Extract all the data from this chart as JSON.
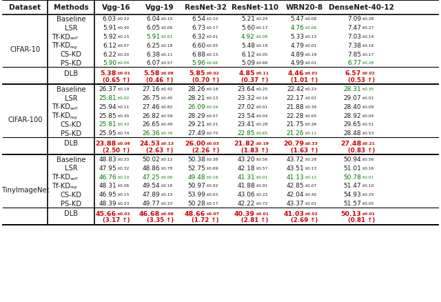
{
  "col_headers": [
    "Dataset",
    "Methods",
    "Vgg-16",
    "Vgg-19",
    "ResNet-32",
    "ResNet-110",
    "WRN20-8",
    "DenseNet-40-12"
  ],
  "cifar10": {
    "Baseline": [
      [
        "6.03",
        "0.22"
      ],
      [
        "6.04",
        "0.10"
      ],
      [
        "6.54",
        "0.10"
      ],
      [
        "5.21",
        "0.24"
      ],
      [
        "5.47",
        "0.08"
      ],
      [
        "7.09",
        "0.28"
      ]
    ],
    "LSR": [
      [
        "5.91",
        "0.40"
      ],
      [
        "6.05",
        "0.06"
      ],
      [
        "6.73",
        "0.17"
      ],
      [
        "5.60",
        "0.17"
      ],
      [
        "4.76",
        "0.06"
      ],
      [
        "7.47",
        "0.27"
      ]
    ],
    "Tf-KDself": [
      [
        "5.92",
        "0.15"
      ],
      [
        "5.91",
        "0.01"
      ],
      [
        "6.32",
        "0.01"
      ],
      [
        "4.92",
        "0.08"
      ],
      [
        "5.33",
        "0.13"
      ],
      [
        "7.03",
        "0.14"
      ]
    ],
    "Tf-KDreg": [
      [
        "6.12",
        "0.07"
      ],
      [
        "6.25",
        "0.18"
      ],
      [
        "6.60",
        "0.05"
      ],
      [
        "5.48",
        "0.18"
      ],
      [
        "4.79",
        "0.01"
      ],
      [
        "7.38",
        "0.16"
      ]
    ],
    "CS-KD": [
      [
        "6.22",
        "0.20"
      ],
      [
        "6.38",
        "0.11"
      ],
      [
        "6.88",
        "0.15"
      ],
      [
        "6.12",
        "0.05"
      ],
      [
        "4.89",
        "0.19"
      ],
      [
        "7.85",
        "0.17"
      ]
    ],
    "PS-KD": [
      [
        "5.90",
        "0.04"
      ],
      [
        "6.07",
        "0.57"
      ],
      [
        "5.96",
        "0.06"
      ],
      [
        "5.09",
        "0.68"
      ],
      [
        "4.99",
        "0.01"
      ],
      [
        "6.77",
        "0.28"
      ]
    ],
    "DLB": [
      [
        "5.38",
        "0.01"
      ],
      [
        "5.58",
        "0.08"
      ],
      [
        "5.85",
        "0.02"
      ],
      [
        "4.85",
        "0.11"
      ],
      [
        "4.46",
        "0.01"
      ],
      [
        "6.57",
        "0.02"
      ]
    ],
    "DLB_imp": [
      "0.65",
      "0.46",
      "0.70",
      "0.37",
      "1.01",
      "0.53"
    ]
  },
  "cifar100": {
    "Baseline": [
      [
        "26.37",
        "0.19"
      ],
      [
        "27.16",
        "0.42"
      ],
      [
        "28.26",
        "0.18"
      ],
      [
        "23.64",
        "0.25"
      ],
      [
        "22.42",
        "0.23"
      ],
      [
        "28.31",
        "0.35"
      ]
    ],
    "LSR": [
      [
        "25.81",
        "0.02"
      ],
      [
        "26.75",
        "0.45"
      ],
      [
        "28.21",
        "0.13"
      ],
      [
        "23.32",
        "0.16"
      ],
      [
        "22.17",
        "0.01"
      ],
      [
        "29.07",
        "0.01"
      ]
    ],
    "Tf-KDself": [
      [
        "25.94",
        "0.11"
      ],
      [
        "27.46",
        "0.82"
      ],
      [
        "26.09",
        "0.24"
      ],
      [
        "27.02",
        "0.01"
      ],
      [
        "21.88",
        "0.34"
      ],
      [
        "28.40",
        "0.09"
      ]
    ],
    "Tf-KDreg": [
      [
        "25.85",
        "0.30"
      ],
      [
        "26.82",
        "0.59"
      ],
      [
        "28.29",
        "0.07"
      ],
      [
        "23.54",
        "0.04"
      ],
      [
        "22.28",
        "0.05"
      ],
      [
        "28.92",
        "0.04"
      ]
    ],
    "CS-KD": [
      [
        "25.81",
        "0.43"
      ],
      [
        "26.65",
        "0.49"
      ],
      [
        "29.21",
        "0.21"
      ],
      [
        "23.41",
        "0.28"
      ],
      [
        "21.75",
        "0.26"
      ],
      [
        "29.65",
        "0.51"
      ]
    ],
    "PS-KD": [
      [
        "25.95",
        "0.74"
      ],
      [
        "26.36",
        "0.76"
      ],
      [
        "27.49",
        "0.75"
      ],
      [
        "22.85",
        "0.65"
      ],
      [
        "21.26",
        "0.11"
      ],
      [
        "28.48",
        "0.53"
      ]
    ],
    "DLB": [
      [
        "23.88",
        "0.06"
      ],
      [
        "24.53",
        "0.13"
      ],
      [
        "26.00",
        "0.03"
      ],
      [
        "21.82",
        "0.19"
      ],
      [
        "20.79",
        "0.33"
      ],
      [
        "27.48",
        "0.21"
      ]
    ],
    "DLB_imp": [
      "2.50",
      "2.63",
      "2.26",
      "1.83",
      "1.63",
      "0.83"
    ]
  },
  "tinyimagenet": {
    "Baseline": [
      [
        "48.83",
        "0.33"
      ],
      [
        "50.02",
        "0.12"
      ],
      [
        "50.38",
        "0.38"
      ],
      [
        "43.20",
        "0.56"
      ],
      [
        "43.72",
        "0.28"
      ],
      [
        "50.94",
        "0.56"
      ]
    ],
    "LSR": [
      [
        "47.95",
        "0.32"
      ],
      [
        "48.86",
        "0.78"
      ],
      [
        "52.75",
        "0.69"
      ],
      [
        "42.18",
        "0.57"
      ],
      [
        "43.51",
        "0.13"
      ],
      [
        "51.01",
        "0.16"
      ]
    ],
    "Tf-KDself": [
      [
        "46.76",
        "0.10"
      ],
      [
        "47.25",
        "0.06"
      ],
      [
        "49.48",
        "0.16"
      ],
      [
        "41.31",
        "0.01"
      ],
      [
        "41.13",
        "0.11"
      ],
      [
        "50.78",
        "0.01"
      ]
    ],
    "Tf-KDreg": [
      [
        "48.31",
        "0.06"
      ],
      [
        "49.54",
        "0.16"
      ],
      [
        "50.97",
        "0.02"
      ],
      [
        "41.88",
        "0.91"
      ],
      [
        "42.85",
        "0.07"
      ],
      [
        "51.47",
        "0.10"
      ]
    ],
    "CS-KD": [
      [
        "46.95",
        "0.15"
      ],
      [
        "47.89",
        "0.13"
      ],
      [
        "53.99",
        "0.03"
      ],
      [
        "43.06",
        "0.22"
      ],
      [
        "42.04",
        "0.42"
      ],
      [
        "54.93",
        "0.25"
      ]
    ],
    "PS-KD": [
      [
        "48.39",
        "0.23"
      ],
      [
        "49.77",
        "0.23"
      ],
      [
        "50.28",
        "0.17"
      ],
      [
        "42.22",
        "0.72"
      ],
      [
        "43.37",
        "0.01"
      ],
      [
        "51.57",
        "0.05"
      ]
    ],
    "DLB": [
      [
        "45.66",
        "0.01"
      ],
      [
        "46.68",
        "0.09"
      ],
      [
        "48.66",
        "0.07"
      ],
      [
        "40.39",
        "0.01"
      ],
      [
        "41.03",
        "0.02"
      ],
      [
        "50.13",
        "0.01"
      ]
    ],
    "DLB_imp": [
      "3.17",
      "3.35",
      "1.72",
      "2.81",
      "2.69",
      "0.81"
    ]
  },
  "black": "#1a1a1a",
  "red": "#cc0000",
  "green": "#007700",
  "header_fontsize": 7.5,
  "method_fontsize": 7.2,
  "data_fontsize": 6.5,
  "sub_fontsize": 4.3,
  "imp_fontsize": 6.2
}
